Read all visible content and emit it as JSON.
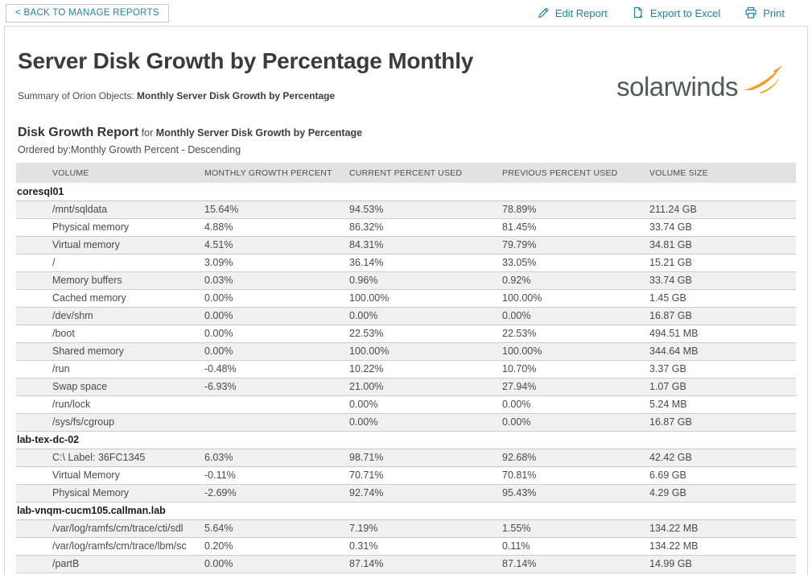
{
  "toolbar": {
    "back_label": "< BACK TO MANAGE REPORTS",
    "actions": [
      {
        "label": "Edit Report",
        "icon": "pencil-icon"
      },
      {
        "label": "Export to Excel",
        "icon": "export-excel-icon"
      },
      {
        "label": "Print",
        "icon": "printer-icon"
      }
    ]
  },
  "logo": {
    "text": "solarwinds",
    "swoosh_color": "#F99D1E"
  },
  "report": {
    "title": "Server Disk Growth by Percentage Monthly",
    "summary_prefix": "Summary of Orion Objects: ",
    "summary_value": "Monthly Server Disk Growth by Percentage",
    "section_title": "Disk Growth Report",
    "section_for": " for ",
    "section_subject": "Monthly Server Disk Growth by Percentage",
    "ordered_by": "Ordered by:Monthly Growth Percent - Descending"
  },
  "table": {
    "columns": [
      "VOLUME",
      "MONTHLY GROWTH PERCENT",
      "CURRENT PERCENT USED",
      "PREVIOUS PERCENT USED",
      "VOLUME SIZE"
    ],
    "groups": [
      {
        "name": "coresql01",
        "rows": [
          [
            "/mnt/sqldata",
            "15.64%",
            "94.53%",
            "78.89%",
            "211.24 GB"
          ],
          [
            "Physical memory",
            "4.88%",
            "86.32%",
            "81.45%",
            "33.74 GB"
          ],
          [
            "Virtual memory",
            "4.51%",
            "84.31%",
            "79.79%",
            "34.81 GB"
          ],
          [
            "/",
            "3.09%",
            "36.14%",
            "33.05%",
            "15.21 GB"
          ],
          [
            "Memory buffers",
            "0.03%",
            "0.96%",
            "0.92%",
            "33.74 GB"
          ],
          [
            "Cached memory",
            "0.00%",
            "100.00%",
            "100.00%",
            "1.45 GB"
          ],
          [
            "/dev/shm",
            "0.00%",
            "0.00%",
            "0.00%",
            "16.87 GB"
          ],
          [
            "/boot",
            "0.00%",
            "22.53%",
            "22.53%",
            "494.51 MB"
          ],
          [
            "Shared memory",
            "0.00%",
            "100.00%",
            "100.00%",
            "344.64 MB"
          ],
          [
            "/run",
            "-0.48%",
            "10.22%",
            "10.70%",
            "3.37 GB"
          ],
          [
            "Swap space",
            "-6.93%",
            "21.00%",
            "27.94%",
            "1.07 GB"
          ],
          [
            "/run/lock",
            "",
            "0.00%",
            "0.00%",
            "5.24 MB"
          ],
          [
            "/sys/fs/cgroup",
            "",
            "0.00%",
            "0.00%",
            "16.87 GB"
          ]
        ]
      },
      {
        "name": "lab-tex-dc-02",
        "rows": [
          [
            "C:\\ Label: 36FC1345",
            "6.03%",
            "98.71%",
            "92.68%",
            "42.42 GB"
          ],
          [
            "Virtual Memory",
            "-0.11%",
            "70.71%",
            "70.81%",
            "6.69 GB"
          ],
          [
            "Physical Memory",
            "-2.69%",
            "92.74%",
            "95.43%",
            "4.29 GB"
          ]
        ]
      },
      {
        "name": "lab-vnqm-cucm105.callman.lab",
        "rows": [
          [
            "/var/log/ramfs/cm/trace/cti/sdl",
            "5.64%",
            "7.19%",
            "1.55%",
            "134.22 MB"
          ],
          [
            "/var/log/ramfs/cm/trace/lbm/sc",
            "0.20%",
            "0.31%",
            "0.11%",
            "134.22 MB"
          ],
          [
            "/partB",
            "0.00%",
            "87.14%",
            "87.14%",
            "14.99 GB"
          ]
        ]
      }
    ]
  },
  "colors": {
    "link_blue": "#1d82ab",
    "header_band": "#e2e2e2",
    "alt_row": "#f0f0f0",
    "logo_gray": "#55575b",
    "logo_orange": "#F99D1E"
  }
}
